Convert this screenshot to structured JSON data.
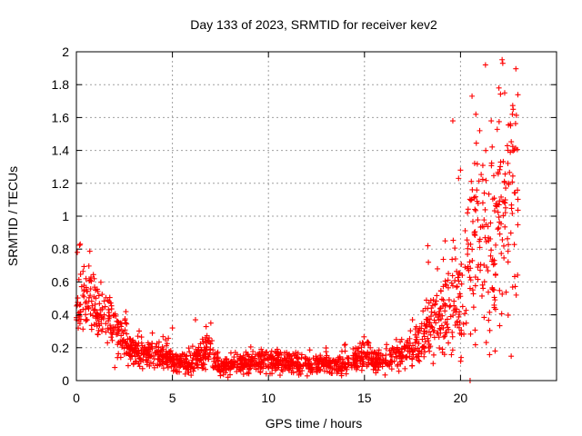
{
  "chart_data": {
    "type": "scatter",
    "title": "Day 133 of 2023, SRMTID for receiver kev2",
    "xlabel": "GPS time / hours",
    "ylabel": "SRMTID / TECUs",
    "xlim": [
      0,
      25
    ],
    "ylim": [
      0,
      2
    ],
    "x_ticks": [
      0,
      5,
      10,
      15,
      20
    ],
    "x_tick_labels": [
      "0",
      "5",
      "10",
      "15",
      "20"
    ],
    "y_ticks": [
      0,
      0.2,
      0.4,
      0.6,
      0.8,
      1,
      1.2,
      1.4,
      1.6,
      1.8,
      2
    ],
    "y_tick_labels": [
      "0",
      "0.2",
      "0.4",
      "0.6",
      "0.8",
      "1",
      "1.2",
      "1.4",
      "1.6",
      "1.8",
      "2"
    ],
    "grid": true,
    "marker": "+",
    "series": [
      {
        "name": "SRMTID",
        "color": "#ff0000",
        "profile": {
          "x": [
            0,
            0.5,
            1,
            1.5,
            2,
            2.5,
            3,
            4,
            5,
            5.5,
            6,
            7,
            7.5,
            8,
            9,
            10,
            11,
            12,
            13,
            14,
            15,
            15.5,
            16,
            16.5,
            17,
            17.5,
            18,
            18.5,
            19,
            19.5,
            20,
            20.5,
            21,
            21.5,
            22,
            22.5,
            23
          ],
          "y": [
            0.45,
            0.52,
            0.42,
            0.4,
            0.3,
            0.26,
            0.17,
            0.16,
            0.14,
            0.1,
            0.1,
            0.2,
            0.08,
            0.09,
            0.11,
            0.12,
            0.11,
            0.1,
            0.1,
            0.1,
            0.15,
            0.12,
            0.13,
            0.15,
            0.16,
            0.2,
            0.25,
            0.32,
            0.4,
            0.45,
            0.55,
            0.75,
            0.8,
            0.85,
            0.9,
            1.0,
            1.05
          ]
        },
        "sample_points": [
          [
            0.05,
            0.78
          ],
          [
            0.2,
            0.83
          ],
          [
            0.5,
            0.62
          ],
          [
            1.0,
            0.55
          ],
          [
            1.5,
            0.45
          ],
          [
            2.3,
            0.35
          ],
          [
            2.0,
            0.08
          ],
          [
            3.2,
            0.27
          ],
          [
            5.0,
            0.32
          ],
          [
            6.2,
            0.37
          ],
          [
            7.0,
            0.35
          ],
          [
            7.5,
            0.03
          ],
          [
            10.5,
            0.17
          ],
          [
            14.0,
            0.22
          ],
          [
            15.2,
            0.23
          ],
          [
            17.5,
            0.37
          ],
          [
            18.3,
            0.82
          ],
          [
            18.8,
            0.68
          ],
          [
            19.2,
            0.85
          ],
          [
            19.6,
            1.58
          ],
          [
            19.9,
            1.23
          ],
          [
            20.0,
            1.28
          ],
          [
            20.3,
            0.35
          ],
          [
            20.5,
            0.0
          ],
          [
            20.6,
            1.73
          ],
          [
            20.8,
            1.62
          ],
          [
            21.0,
            1.52
          ],
          [
            21.3,
            1.92
          ],
          [
            21.6,
            1.58
          ],
          [
            21.8,
            0.18
          ],
          [
            22.0,
            1.78
          ],
          [
            22.2,
            1.93
          ],
          [
            22.3,
            1.75
          ],
          [
            22.5,
            1.2
          ],
          [
            22.7,
            1.62
          ],
          [
            22.9,
            0.52
          ]
        ]
      }
    ]
  }
}
